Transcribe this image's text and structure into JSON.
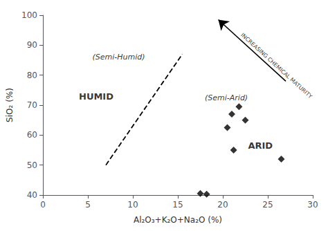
{
  "chart_data": {
    "type": "scatter",
    "xlabel": "Al₂O₃+K₂O+Na₂O (%)",
    "ylabel": "SiO₂ (%)",
    "xlim": [
      0,
      30
    ],
    "ylim": [
      40,
      100
    ],
    "xticks": [
      0,
      5,
      10,
      15,
      20,
      25,
      30
    ],
    "yticks": [
      40,
      50,
      60,
      70,
      80,
      90,
      100
    ],
    "grid": false,
    "series": [
      {
        "type": "scatter",
        "marker": "diamond",
        "color": "black",
        "x": [
          17.5,
          18.2,
          20.5,
          21.0,
          21.8,
          22.5,
          21.2,
          26.5
        ],
        "values": [
          40.5,
          40.3,
          62.5,
          67.0,
          69.5,
          65.0,
          55.0,
          52.0
        ]
      },
      {
        "type": "line",
        "line_style": "dashed",
        "color": "black",
        "x": [
          7.0,
          15.5
        ],
        "values": [
          50.0,
          87.0
        ]
      }
    ],
    "annotations": [
      {
        "text": "HUMID",
        "x": 4.0,
        "y": 73
      },
      {
        "text": "(Semi-Humid)",
        "x": 5.5,
        "y": 86
      },
      {
        "text": "(Semi-Arid)",
        "x": 18.0,
        "y": 72.5
      },
      {
        "text": "ARID",
        "x": 22.8,
        "y": 56.5
      },
      {
        "text": "INCREASING CHEMICAL MATURITY",
        "x": 25.5,
        "y": 83
      }
    ],
    "arrows": [
      {
        "x": [
          27.0,
          19.5
        ],
        "y": [
          78.0,
          98.5
        ],
        "color": "black"
      }
    ]
  }
}
